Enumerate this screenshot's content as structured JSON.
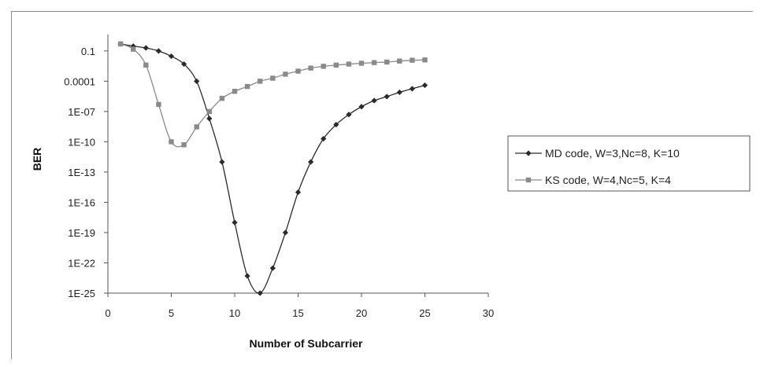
{
  "chart_data": {
    "type": "line",
    "xlabel": "Number of Subcarrier",
    "ylabel": "BER",
    "xlim": [
      0,
      30
    ],
    "xticks": [
      0,
      5,
      10,
      15,
      20,
      25,
      30
    ],
    "yscale": "log",
    "ylim": [
      1e-25,
      1
    ],
    "yticks": [
      {
        "value": 0.1,
        "label": "0.1"
      },
      {
        "value": 0.0001,
        "label": "0.0001"
      },
      {
        "value": 1e-07,
        "label": "1E-07"
      },
      {
        "value": 1e-10,
        "label": "1E-10"
      },
      {
        "value": 1e-13,
        "label": "1E-13"
      },
      {
        "value": 1e-16,
        "label": "1E-16"
      },
      {
        "value": 1e-19,
        "label": "1E-19"
      },
      {
        "value": 1e-22,
        "label": "1E-22"
      },
      {
        "value": 1e-25,
        "label": "1E-25"
      }
    ],
    "grid": false,
    "legend_position": "right",
    "series": [
      {
        "name": "MD code, W=3,Nc=8, K=10",
        "marker": "diamond",
        "color": "#2a2a2a",
        "x": [
          1,
          2,
          3,
          4,
          5,
          6,
          7,
          8,
          9,
          10,
          11,
          12,
          13,
          14,
          15,
          16,
          17,
          18,
          19,
          20,
          21,
          22,
          23,
          24,
          25
        ],
        "y": [
          0.5,
          0.3,
          0.2,
          0.1,
          0.03,
          0.005,
          0.0001,
          2e-08,
          1e-12,
          1e-18,
          5e-24,
          1e-25,
          3e-23,
          1e-19,
          1e-15,
          1e-12,
          2e-10,
          5e-09,
          5e-08,
          3e-07,
          1.2e-06,
          3e-06,
          8e-06,
          1.8e-05,
          4e-05
        ]
      },
      {
        "name": "KS code, W=4,Nc=5, K=4",
        "marker": "square",
        "color": "#8a8a8a",
        "x": [
          1,
          2,
          3,
          4,
          5,
          6,
          7,
          8,
          9,
          10,
          11,
          12,
          13,
          14,
          15,
          16,
          17,
          18,
          19,
          20,
          21,
          22,
          23,
          24,
          25
        ],
        "y": [
          0.5,
          0.15,
          0.004,
          5e-07,
          1e-10,
          5e-11,
          3e-09,
          1e-07,
          2e-06,
          1e-05,
          3e-05,
          0.0001,
          0.0002,
          0.0005,
          0.001,
          0.002,
          0.003,
          0.004,
          0.005,
          0.006,
          0.007,
          0.008,
          0.01,
          0.012,
          0.013
        ]
      }
    ]
  }
}
